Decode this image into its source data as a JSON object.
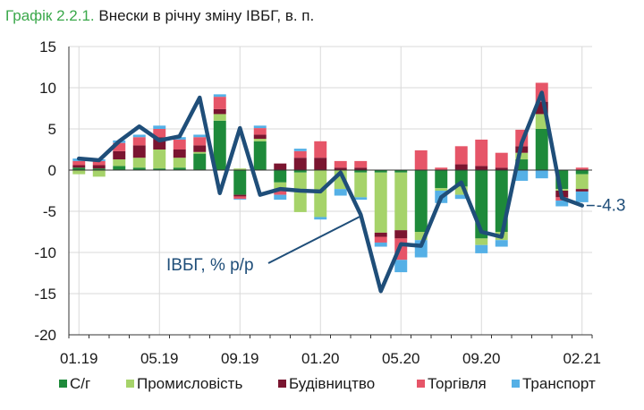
{
  "title": {
    "number": "Графік 2.2.1.",
    "text": "Внески в річну зміну ІВБГ, в. п."
  },
  "chart_data": {
    "type": "bar",
    "stacked": true,
    "ylim": [
      -20,
      15
    ],
    "yticks": [
      15,
      10,
      5,
      0,
      -5,
      -10,
      -15,
      -20
    ],
    "grid": true,
    "legend_position": "bottom",
    "xtick_labels": [
      {
        "index": 0,
        "label": "01.19"
      },
      {
        "index": 4,
        "label": "05.19"
      },
      {
        "index": 8,
        "label": "09.19"
      },
      {
        "index": 12,
        "label": "01.20"
      },
      {
        "index": 16,
        "label": "05.20"
      },
      {
        "index": 20,
        "label": "09.20"
      },
      {
        "index": 25,
        "label": "02.21"
      }
    ],
    "categories": [
      "01.19",
      "02.19",
      "03.19",
      "04.19",
      "05.19",
      "06.19",
      "07.19",
      "08.19",
      "09.19",
      "10.19",
      "11.19",
      "12.19",
      "01.20",
      "02.20",
      "03.20",
      "04.20",
      "05.20",
      "06.20",
      "07.20",
      "08.20",
      "09.20",
      "10.20",
      "11.20",
      "12.20",
      "01.21",
      "02.21"
    ],
    "series": [
      {
        "name": "С/г",
        "color": "#1e8a3a",
        "values": [
          0.3,
          0.2,
          0.5,
          0.3,
          0.2,
          0.3,
          2.0,
          6.0,
          -3.0,
          3.5,
          -1.5,
          -0.3,
          0,
          0,
          -0.3,
          -0.3,
          -0.3,
          -7.5,
          -2.2,
          -2.0,
          -8.3,
          -7.5,
          1.3,
          5.0,
          -2.3,
          -0.5
        ]
      },
      {
        "name": "Промисловість",
        "color": "#a6d36a",
        "values": [
          -0.5,
          -0.8,
          0.8,
          1.2,
          2.3,
          1.2,
          0.2,
          0.8,
          0.2,
          0.3,
          -1.0,
          -4.8,
          -5.7,
          -2.3,
          -3.0,
          -7.3,
          -7.0,
          -1.0,
          -0.3,
          -1.0,
          -0.8,
          -1.0,
          0.8,
          1.8,
          -0.2,
          -1.8
        ]
      },
      {
        "name": "Будівництво",
        "color": "#7a1530",
        "values": [
          0.3,
          0.4,
          1.0,
          1.5,
          1.5,
          1.0,
          0.8,
          0.6,
          -0.2,
          0.5,
          0.8,
          1.5,
          1.5,
          0.3,
          0.3,
          -0.5,
          -1.0,
          0,
          0,
          0.7,
          0.5,
          0.3,
          0.8,
          1.5,
          -0.8,
          -0.3
        ]
      },
      {
        "name": "Торгівля",
        "color": "#e65568",
        "values": [
          0.5,
          0.5,
          1.0,
          1.0,
          1.0,
          1.2,
          1.0,
          1.5,
          -0.3,
          0.8,
          -0.5,
          0.8,
          2.0,
          0.8,
          0.8,
          -0.7,
          -2.6,
          2.4,
          0.3,
          2.2,
          3.2,
          1.8,
          2.0,
          2.3,
          -0.4,
          0.3
        ]
      },
      {
        "name": "Транспорт",
        "color": "#55b0e6",
        "values": [
          0.3,
          0.2,
          0.3,
          0.3,
          0.4,
          0.3,
          0.3,
          0.3,
          -0.1,
          0.3,
          -0.6,
          0.3,
          -0.3,
          -0.8,
          -0.3,
          -0.5,
          -1.5,
          -2.1,
          -1.5,
          -0.5,
          -1.0,
          -0.8,
          -1.3,
          -1.0,
          -0.7,
          -1.3
        ]
      }
    ],
    "line": {
      "name": "ІВБГ, % р/р",
      "color": "#1f4e79",
      "values": [
        1.4,
        1.2,
        3.5,
        5.3,
        3.6,
        4.1,
        8.8,
        -2.8,
        5.1,
        -3.0,
        -2.3,
        -2.5,
        -2.6,
        -0.3,
        -5.4,
        -14.7,
        -9.0,
        -9.2,
        -3.3,
        -1.5,
        -7.5,
        -8.1,
        3.3,
        9.4,
        -3.4,
        -4.3
      ],
      "end_label": "-4.3"
    }
  }
}
